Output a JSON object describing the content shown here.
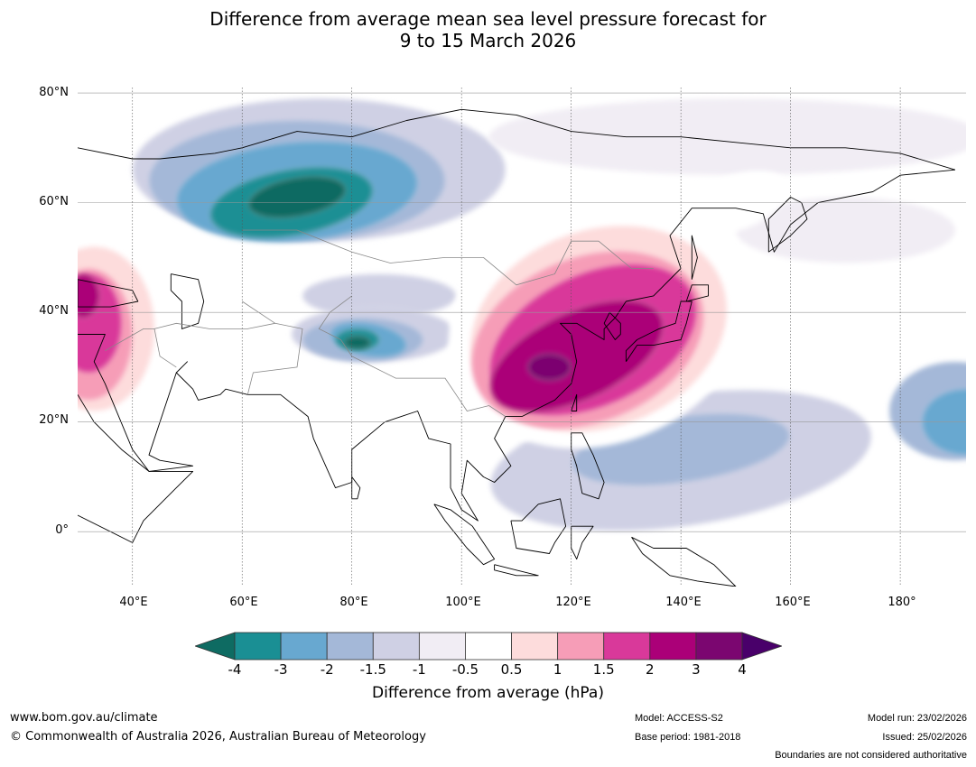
{
  "title": {
    "line1": "Difference from average mean sea level pressure forecast for",
    "line2": "9 to 15 March 2026"
  },
  "map": {
    "lat_labels": [
      "80°N",
      "60°N",
      "40°N",
      "20°N",
      "0°"
    ],
    "lon_labels": [
      "40°E",
      "60°E",
      "80°E",
      "100°E",
      "120°E",
      "140°E",
      "160°E",
      "180°"
    ],
    "lat_values": [
      80,
      60,
      40,
      20,
      0
    ],
    "lon_values": [
      40,
      60,
      80,
      100,
      120,
      140,
      160,
      180
    ],
    "lon_range": [
      30,
      192
    ],
    "lat_range": [
      -10,
      81
    ],
    "anomalies": [
      {
        "name": "west-siberia-low",
        "lon": 72,
        "lat": 62,
        "value": -4
      },
      {
        "name": "tibet-low",
        "lon": 81,
        "lat": 35,
        "value": -4
      },
      {
        "name": "china-japan-high",
        "lon": 115,
        "lat": 30,
        "value": 4
      },
      {
        "name": "arabia-high",
        "lon": 34,
        "lat": 40,
        "value": 3
      },
      {
        "name": "west-pacific-low",
        "lon": 140,
        "lat": 15,
        "value": -2
      },
      {
        "name": "central-pacific-low",
        "lon": 188,
        "lat": 22,
        "value": -2
      }
    ]
  },
  "colorbar": {
    "colors": [
      "#0e6b62",
      "#1a8f94",
      "#68a8d0",
      "#a4b8d8",
      "#cfd0e4",
      "#f1edf4",
      "#ffffff",
      "#fddcdc",
      "#f69db7",
      "#d9399a",
      "#ab0078",
      "#7b0670",
      "#49006a"
    ],
    "labels": [
      "-4",
      "-3",
      "-2",
      "-1.5",
      "-1",
      "-0.5",
      "0.5",
      "1",
      "1.5",
      "2",
      "3",
      "4"
    ],
    "title": "Difference from average (hPa)"
  },
  "footer": {
    "url": "www.bom.gov.au/climate",
    "copyright": "© Commonwealth of Australia 2026, Australian Bureau of Meteorology",
    "model": "Model: ACCESS-S2",
    "base_period": "Base period: 1981-2018",
    "model_run": "Model run: 23/02/2026",
    "issued": "Issued: 25/02/2026",
    "disclaimer": "Boundaries are not considered authoritative"
  }
}
